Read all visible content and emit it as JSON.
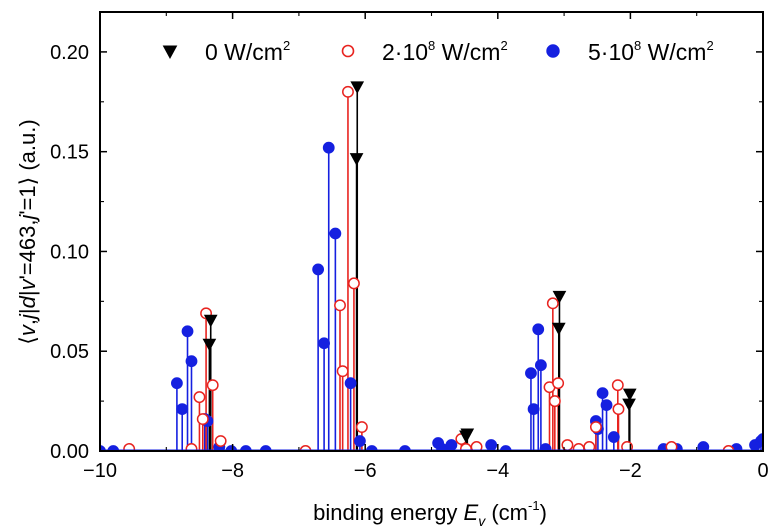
{
  "chart_data": {
    "type": "scatter",
    "title": "",
    "xlabel": "binding energy E_v (cm^-1)",
    "xlabel_main": "binding energy ",
    "xlabel_symbol": "E",
    "xlabel_subscript": "v",
    "xlabel_units_pre": " (cm",
    "xlabel_units_exp": "-1",
    "xlabel_units_post": ")",
    "ylabel": "⟨v,j|d|v'=463,j'=1⟩ (a.u.)",
    "ylabel_parts": [
      "⟨",
      "v",
      ",",
      "j",
      "|",
      "d",
      "|",
      "v",
      "'=463,",
      "j",
      "'=1⟩ (a.u.)"
    ],
    "xlim": [
      -10,
      0
    ],
    "ylim": [
      0,
      0.22
    ],
    "x_ticks": [
      -10,
      -8,
      -6,
      -4,
      -2,
      0
    ],
    "x_tick_labels": [
      "−10",
      "−8",
      "−6",
      "−4",
      "−2",
      "0"
    ],
    "y_ticks": [
      0,
      0.05,
      0.1,
      0.15,
      0.2
    ],
    "y_tick_labels": [
      "0.00",
      "0.05",
      "0.10",
      "0.15",
      "0.20"
    ],
    "grid": false,
    "legend_placement": "top",
    "series": [
      {
        "name_base": "0 W/cm",
        "name_exp": "2",
        "name": "0 W/cm^2",
        "marker": "triangle-down-filled",
        "color": "#000000",
        "x": [
          -8.33,
          -8.35,
          -6.12,
          -6.13,
          -4.46,
          -4.48,
          -3.07,
          -3.08,
          -2.01,
          -2.02
        ],
        "y": [
          0.066,
          0.054,
          0.183,
          0.147,
          0.009,
          0.008,
          0.078,
          0.062,
          0.029,
          0.024
        ]
      },
      {
        "name_base": "2·10",
        "name_exp_1": "8",
        "name_unit": " W/cm",
        "name_exp_2": "2",
        "name": "2·10^8 W/cm^2",
        "marker": "circle-open",
        "color": "#e8231f",
        "x": [
          -9.56,
          -8.62,
          -8.5,
          -8.45,
          -8.4,
          -8.3,
          -8.18,
          -6.9,
          -6.38,
          -6.34,
          -6.26,
          -6.17,
          -6.05,
          -4.55,
          -4.48,
          -4.32,
          -3.22,
          -3.17,
          -3.14,
          -3.09,
          -2.95,
          -2.78,
          -2.62,
          -2.52,
          -2.19,
          -2.18,
          -2.05,
          -1.38,
          -0.52
        ],
        "y": [
          0.001,
          0.001,
          0.027,
          0.016,
          0.069,
          0.033,
          0.005,
          0.0,
          0.073,
          0.04,
          0.18,
          0.084,
          0.012,
          0.006,
          0.001,
          0.002,
          0.032,
          0.074,
          0.025,
          0.034,
          0.003,
          0.001,
          0.002,
          0.012,
          0.033,
          0.021,
          0.002,
          0.002,
          0.0
        ]
      },
      {
        "name_base": "5·10",
        "name_exp_1": "8",
        "name_unit": " W/cm",
        "name_exp_2": "2",
        "name": "5·10^8 W/cm^2",
        "marker": "circle-filled",
        "color": "#1520e0",
        "x": [
          -10.0,
          -9.8,
          -8.84,
          -8.76,
          -8.68,
          -8.62,
          -8.42,
          -8.38,
          -8.2,
          -8.02,
          -7.8,
          -7.5,
          -6.71,
          -6.62,
          -6.55,
          -6.45,
          -6.22,
          -6.08,
          -5.9,
          -5.4,
          -4.9,
          -4.84,
          -4.7,
          -4.1,
          -3.88,
          -3.5,
          -3.46,
          -3.39,
          -3.35,
          -3.28,
          -2.52,
          -2.49,
          -2.42,
          -2.36,
          -2.25,
          -1.5,
          -1.3,
          -0.9,
          -0.4,
          -0.12,
          -0.03,
          0.0
        ],
        "y": [
          0.0,
          0.0,
          0.034,
          0.021,
          0.06,
          0.045,
          0.016,
          0.015,
          0.002,
          0.0,
          0.0,
          0.0,
          0.091,
          0.054,
          0.152,
          0.109,
          0.034,
          0.005,
          0.0,
          0.0,
          0.004,
          0.001,
          0.003,
          0.003,
          0.0,
          0.039,
          0.021,
          0.061,
          0.043,
          0.001,
          0.015,
          0.011,
          0.029,
          0.023,
          0.007,
          0.001,
          0.001,
          0.002,
          0.001,
          0.003,
          0.005,
          0.006
        ]
      }
    ]
  }
}
